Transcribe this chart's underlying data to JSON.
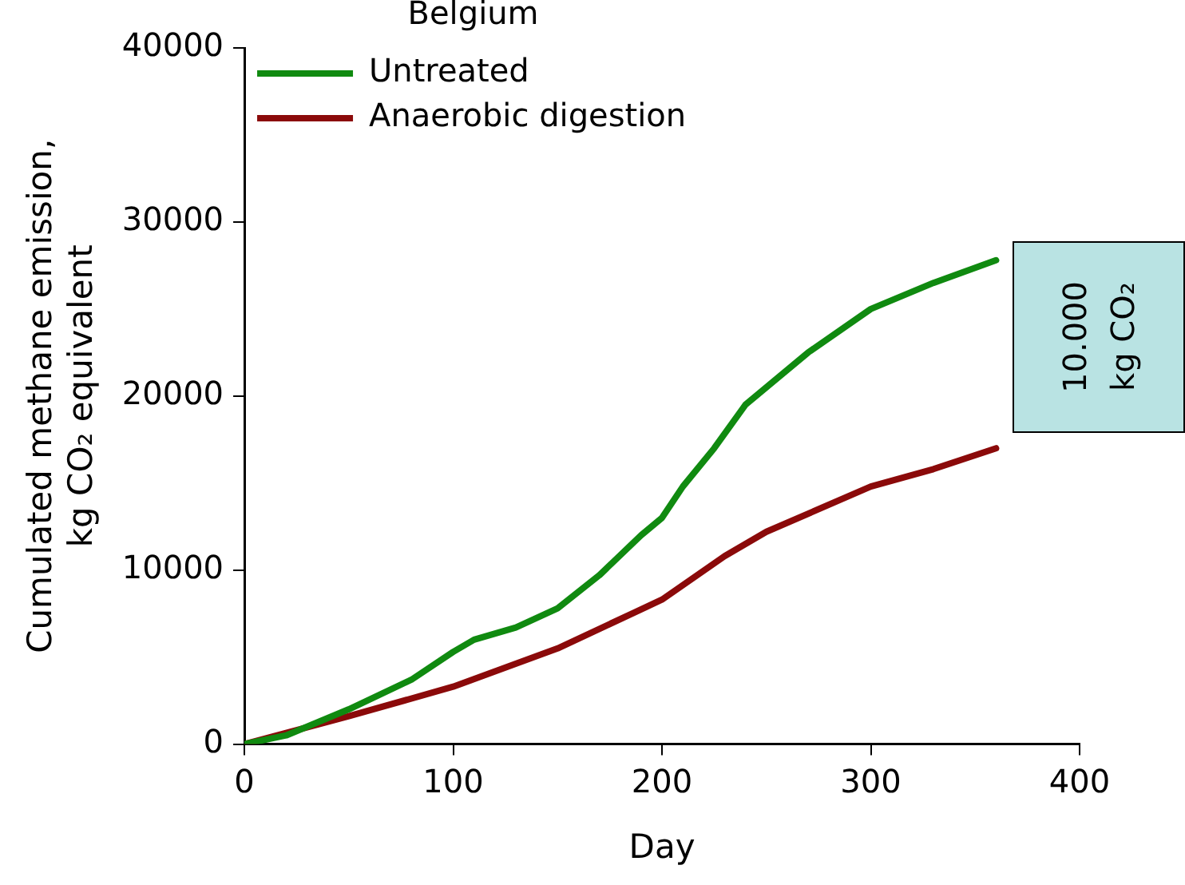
{
  "chart_data": {
    "type": "line",
    "legend_title": "Belgium",
    "xlabel": "Day",
    "ylabel": "Cumulated methane emission,\nkg CO₂ equivalent",
    "xlim": [
      0,
      400
    ],
    "xticks": [
      0,
      100,
      200,
      300,
      400
    ],
    "ylim": [
      0,
      40000
    ],
    "yticks": [
      0,
      10000,
      20000,
      30000,
      40000
    ],
    "grid": false,
    "legend": "top left",
    "marker": "none",
    "line_style": "solid",
    "annotations": [
      "10.000\nkg CO₂"
    ],
    "series": [
      {
        "name": "Untreated",
        "color": "#108a10",
        "x": [
          0,
          20,
          50,
          80,
          100,
          110,
          130,
          150,
          170,
          190,
          200,
          210,
          225,
          240,
          250,
          270,
          300,
          330,
          360
        ],
        "values": [
          0,
          500,
          2000,
          3700,
          5300,
          6000,
          6700,
          7800,
          9700,
          12000,
          13000,
          14800,
          17000,
          19500,
          20500,
          22500,
          25000,
          26500,
          27800
        ]
      },
      {
        "name": "Anaerobic digestion",
        "color": "#8b0a0a",
        "x": [
          0,
          50,
          100,
          150,
          200,
          230,
          250,
          300,
          330,
          360
        ],
        "values": [
          0,
          1600,
          3300,
          5500,
          8300,
          10800,
          12200,
          14800,
          15800,
          17000
        ]
      }
    ]
  }
}
